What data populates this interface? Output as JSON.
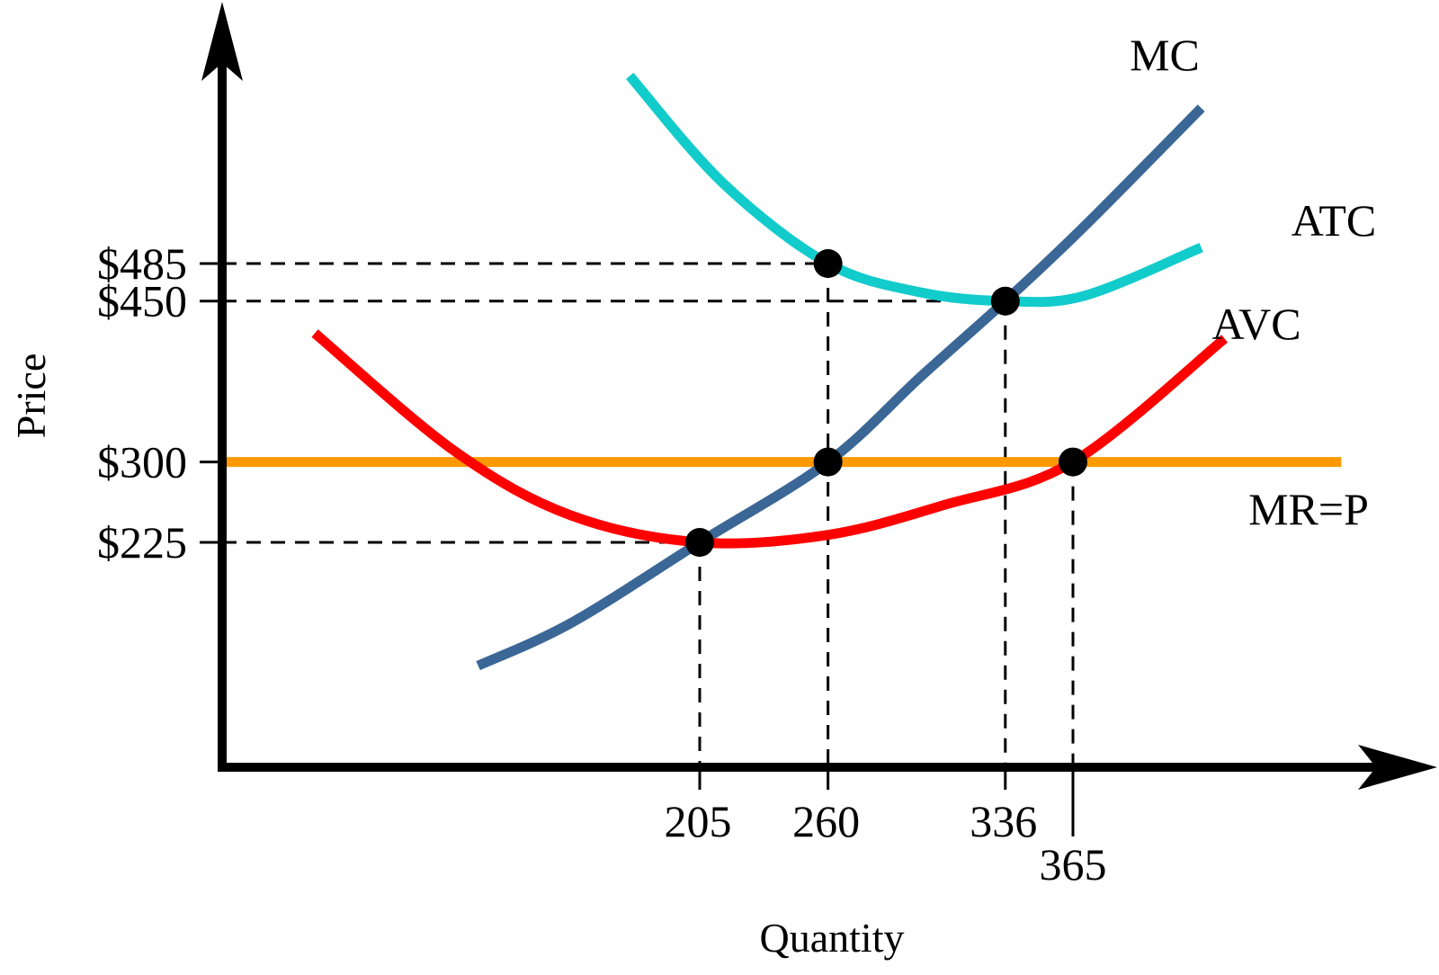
{
  "chart_data": {
    "type": "line",
    "xlabel": "Quantity",
    "ylabel": "Price",
    "x_ticks": [
      {
        "value": 205,
        "label": "205"
      },
      {
        "value": 260,
        "label": "260"
      },
      {
        "value": 336,
        "label": "336"
      },
      {
        "value": 365,
        "label": "365"
      }
    ],
    "y_ticks": [
      {
        "value": 485,
        "label": "$485"
      },
      {
        "value": 450,
        "label": "$450"
      },
      {
        "value": 300,
        "label": "$300"
      },
      {
        "value": 225,
        "label": "$225"
      }
    ],
    "series": [
      {
        "name": "MC",
        "color": "#3b6796",
        "points": [
          [
            110,
            110
          ],
          [
            150,
            150
          ],
          [
            205,
            225
          ],
          [
            260,
            300
          ],
          [
            300,
            380
          ],
          [
            336,
            450
          ],
          [
            370,
            520
          ],
          [
            420,
            630
          ]
        ]
      },
      {
        "name": "ATC",
        "color": "#12cbcb",
        "points": [
          [
            175,
            660
          ],
          [
            215,
            560
          ],
          [
            260,
            485
          ],
          [
            300,
            458
          ],
          [
            336,
            450
          ],
          [
            370,
            455
          ],
          [
            420,
            500
          ]
        ]
      },
      {
        "name": "AVC",
        "color": "#ff0000",
        "points": [
          [
            40,
            420
          ],
          [
            100,
            310
          ],
          [
            150,
            250
          ],
          [
            205,
            225
          ],
          [
            260,
            232
          ],
          [
            310,
            260
          ],
          [
            365,
            300
          ],
          [
            430,
            415
          ]
        ]
      },
      {
        "name": "MR=P",
        "color": "#ff9900",
        "points": [
          [
            0,
            300
          ],
          [
            480,
            300
          ]
        ]
      }
    ],
    "marked_points": [
      {
        "x": 205,
        "y": 225
      },
      {
        "x": 260,
        "y": 485
      },
      {
        "x": 260,
        "y": 300
      },
      {
        "x": 336,
        "y": 450
      },
      {
        "x": 365,
        "y": 300
      }
    ],
    "guide_lines": [
      {
        "x": 205,
        "y": 225
      },
      {
        "x": 260,
        "y": 485
      },
      {
        "x": 336,
        "y": 450
      },
      {
        "x": 365,
        "y": 300
      }
    ],
    "grid": false,
    "legend": "none"
  }
}
